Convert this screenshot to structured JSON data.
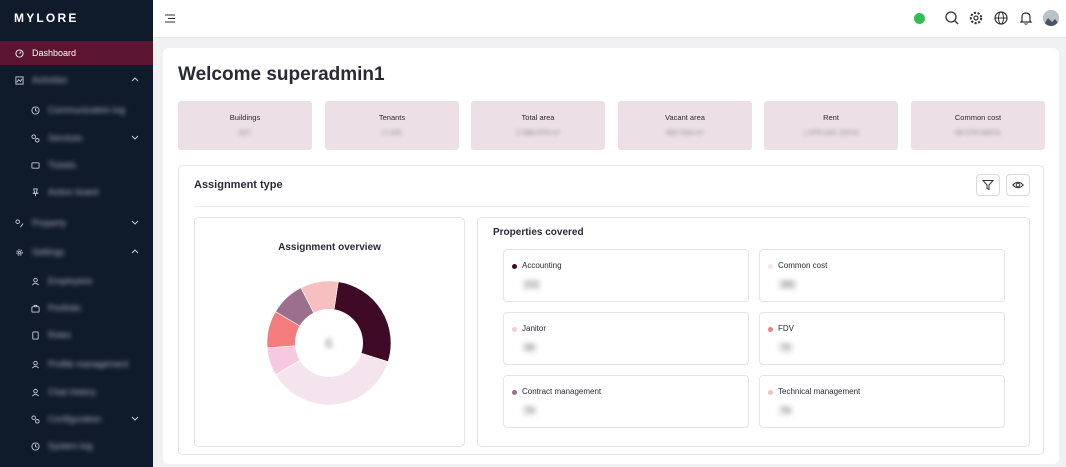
{
  "app": {
    "logo": "MYLORE"
  },
  "sidebar": {
    "items": [
      {
        "label": "Dashboard",
        "icon": "dashboard-icon",
        "active": true
      },
      {
        "label": "Activities",
        "icon": "activities-icon",
        "expanded": true
      },
      {
        "label": "Communication log",
        "icon": "clock-icon",
        "child": true
      },
      {
        "label": "Services",
        "icon": "services-icon",
        "child": true,
        "expandable": true
      },
      {
        "label": "Tickets",
        "icon": "ticket-icon",
        "child": true
      },
      {
        "label": "Action board",
        "icon": "pin-icon",
        "child": true
      },
      {
        "label": "Property",
        "icon": "property-icon",
        "expandable": true
      },
      {
        "label": "Settings",
        "icon": "gear-icon",
        "expanded": true
      },
      {
        "label": "Employees",
        "icon": "user-icon",
        "child": true
      },
      {
        "label": "Portfolio",
        "icon": "briefcase-icon",
        "child": true
      },
      {
        "label": "Roles",
        "icon": "role-icon",
        "child": true
      },
      {
        "label": "Profile management",
        "icon": "profile-icon",
        "child": true
      },
      {
        "label": "Chat history",
        "icon": "chat-icon",
        "child": true
      },
      {
        "label": "Configuration",
        "icon": "config-icon",
        "child": true,
        "expandable": true
      },
      {
        "label": "System log",
        "icon": "log-icon",
        "child": true
      }
    ]
  },
  "topbar": {
    "status_color": "#2fbf58"
  },
  "main": {
    "welcome": "Welcome superadmin1",
    "stats": [
      {
        "label": "Buildings",
        "value": "327"
      },
      {
        "label": "Tenants",
        "value": "2 105"
      },
      {
        "label": "Total area",
        "value": "2 068 876 m²"
      },
      {
        "label": "Vacant area",
        "value": "402 034 m²"
      },
      {
        "label": "Rent",
        "value": "1 375 324 123 kr"
      },
      {
        "label": "Common cost",
        "value": "84 378 349 kr"
      }
    ],
    "assignment": {
      "title": "Assignment type",
      "overview_title": "Assignment overview",
      "overview_center": "6",
      "properties_title": "Properties covered",
      "properties": [
        {
          "label": "Accounting",
          "value": "212",
          "color": "#3f0a25"
        },
        {
          "label": "Common cost",
          "value": "282",
          "color": "#f3e4ee"
        },
        {
          "label": "Janitor",
          "value": "56",
          "color": "#f7c8e0"
        },
        {
          "label": "FDV",
          "value": "75",
          "color": "#f47c7c"
        },
        {
          "label": "Contract management",
          "value": "70",
          "color": "#9c6f8c"
        },
        {
          "label": "Technical management",
          "value": "76",
          "color": "#f7c0c0"
        }
      ]
    }
  }
}
